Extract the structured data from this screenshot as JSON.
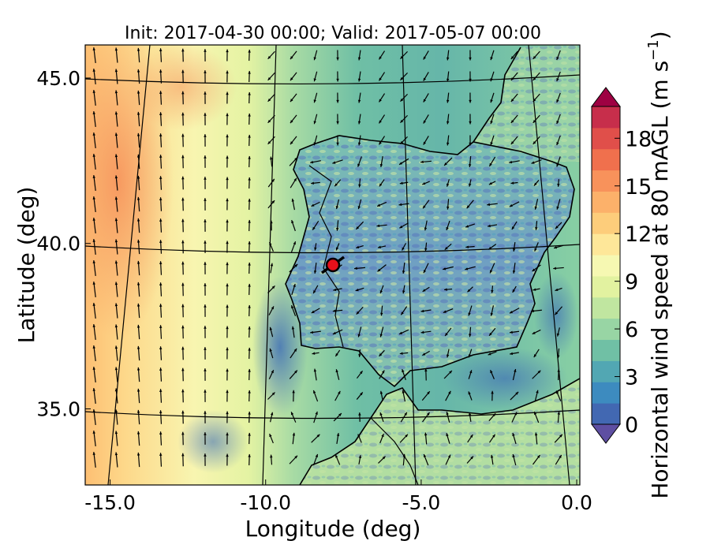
{
  "title": "Init: 2017-04-30 00:00; Valid: 2017-05-07 00:00",
  "x_axis": {
    "label": "Longitude (deg)",
    "range": [
      -15.8,
      0.1
    ],
    "ticks": [
      {
        "value": -15.0,
        "label": "-15.0"
      },
      {
        "value": -10.0,
        "label": "-10.0"
      },
      {
        "value": -5.0,
        "label": "-5.0"
      },
      {
        "value": 0.0,
        "label": "0.0"
      }
    ]
  },
  "y_axis": {
    "label": "Latitude (deg)",
    "range": [
      32.7,
      46.0
    ],
    "ticks": [
      {
        "value": 45.0,
        "label": "45.0"
      },
      {
        "value": 40.0,
        "label": "40.0"
      },
      {
        "value": 35.0,
        "label": "35.0"
      }
    ]
  },
  "colorbar": {
    "label_main": "Horizontal wind speed at 80 mAGL (m s",
    "label_exp": "−1",
    "label_close": ")",
    "range": [
      0,
      20
    ],
    "ticks": [
      {
        "value": 0,
        "label": "0"
      },
      {
        "value": 3,
        "label": "3"
      },
      {
        "value": 6,
        "label": "6"
      },
      {
        "value": 9,
        "label": "9"
      },
      {
        "value": 12,
        "label": "12"
      },
      {
        "value": 15,
        "label": "15"
      },
      {
        "value": 18,
        "label": "18"
      }
    ],
    "colors": [
      "#5e4fa2",
      "#4268b2",
      "#3d8bbf",
      "#52a7b3",
      "#70c0a5",
      "#98d5a4",
      "#c0e6a0",
      "#e2f2a0",
      "#f6f8b2",
      "#fee799",
      "#fdcd7b",
      "#fcb16a",
      "#f8925b",
      "#f0704d",
      "#e04f4a",
      "#c72e4b",
      "#9e0142"
    ],
    "extend": "both"
  },
  "marker": {
    "lon": -7.6,
    "lat": 39.3,
    "color": "#e8101a"
  },
  "colors": {
    "coast": "#000000",
    "gridline": "#000000",
    "arrow": "#000000"
  }
}
